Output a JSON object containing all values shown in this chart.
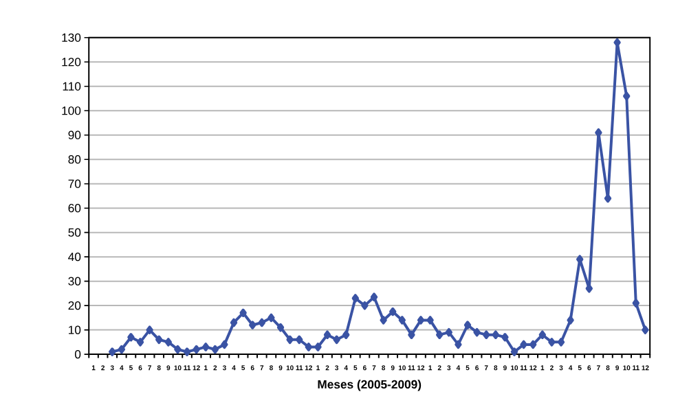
{
  "chart_data": {
    "type": "line",
    "xlabel": "**Meses (2005-2009)**",
    "categories": [
      "1",
      "2",
      "3",
      "4",
      "5",
      "6",
      "7",
      "8",
      "9",
      "10",
      "11",
      "12",
      "1",
      "2",
      "3",
      "4",
      "5",
      "6",
      "7",
      "8",
      "9",
      "10",
      "11",
      "12",
      "1",
      "2",
      "3",
      "4",
      "5",
      "6",
      "7",
      "8",
      "9",
      "10",
      "11",
      "12",
      "1",
      "2",
      "3",
      "4",
      "5",
      "6",
      "7",
      "8",
      "9",
      "10",
      "11",
      "12",
      "1",
      "2",
      "3",
      "4",
      "5",
      "6",
      "7",
      "8",
      "9",
      "10",
      "11",
      "12"
    ],
    "series": [
      {
        "color": "#3a53a4",
        "values": [
          null,
          null,
          1,
          2,
          7,
          5,
          10,
          6,
          5,
          2,
          1,
          2,
          3,
          2,
          4,
          13,
          17,
          12,
          13,
          15,
          11,
          6,
          6,
          3,
          3,
          8,
          6,
          8,
          23,
          20,
          23.5,
          14,
          17.5,
          14,
          8,
          14,
          14,
          8,
          9,
          4,
          12,
          9,
          8,
          8,
          7,
          1,
          4,
          4,
          8,
          5,
          5,
          14,
          39,
          27,
          91,
          64,
          128,
          106,
          21,
          10
        ]
      }
    ],
    "ylim": [
      0,
      130
    ],
    "yticks": [
      0,
      10,
      20,
      30,
      40,
      50,
      60,
      70,
      80,
      90,
      100,
      110,
      120,
      130
    ],
    "grid": "y",
    "marker": "diamond",
    "line_style": "solid"
  }
}
